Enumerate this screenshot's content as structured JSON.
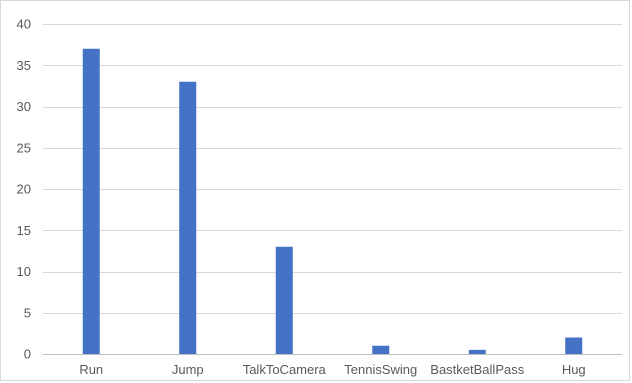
{
  "chart_data": {
    "type": "bar",
    "categories": [
      "Run",
      "Jump",
      "TalkToCamera",
      "TennisSwing",
      "BastketBallPass",
      "Hug"
    ],
    "values": [
      37,
      33,
      13,
      1,
      0.5,
      2
    ],
    "title": "",
    "xlabel": "",
    "ylabel": "",
    "ylim": [
      0,
      40
    ],
    "yticks": [
      0,
      5,
      10,
      15,
      20,
      25,
      30,
      35,
      40
    ],
    "grid": true,
    "legend": "none",
    "colors": {
      "bar": "#4472C4",
      "grid": "#d9d9d9",
      "axis": "#bfbfbf",
      "text": "#595959"
    }
  }
}
